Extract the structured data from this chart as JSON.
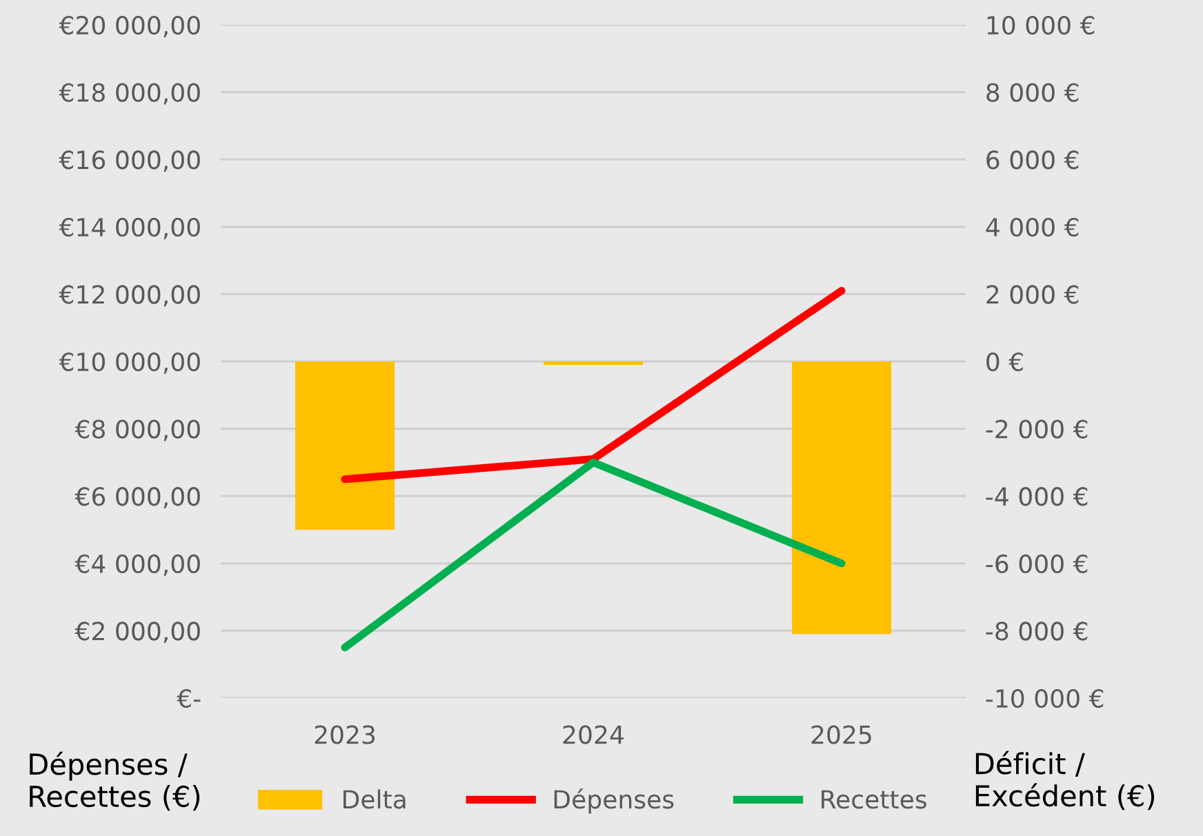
{
  "chart_data": {
    "type": "line",
    "categories": [
      "2023",
      "2024",
      "2025"
    ],
    "series": [
      {
        "name": "Delta",
        "type": "bar",
        "axis": "y2",
        "color": "#ffc000",
        "values": [
          -5000,
          -100,
          -8100
        ]
      },
      {
        "name": "Dépenses",
        "color": "#ff0000",
        "values": [
          6500,
          7100,
          12100
        ]
      },
      {
        "name": "Recettes",
        "color": "#00b050",
        "values": [
          1500,
          7000,
          4000
        ]
      }
    ],
    "ylabel": "Dépenses /\nRecettes (€)",
    "y2label": "Déficit /\nExcédent (€)",
    "ylim": [
      0,
      20000
    ],
    "yticks": [
      {
        "value": 0,
        "label": "€-"
      },
      {
        "value": 2000,
        "label": "€2 000,00"
      },
      {
        "value": 4000,
        "label": "€4 000,00"
      },
      {
        "value": 6000,
        "label": "€6 000,00"
      },
      {
        "value": 8000,
        "label": "€8 000,00"
      },
      {
        "value": 10000,
        "label": "€10 000,00"
      },
      {
        "value": 12000,
        "label": "€12 000,00"
      },
      {
        "value": 14000,
        "label": "€14 000,00"
      },
      {
        "value": 16000,
        "label": "€16 000,00"
      },
      {
        "value": 18000,
        "label": "€18 000,00"
      },
      {
        "value": 20000,
        "label": "€20 000,00"
      }
    ],
    "y2lim": [
      -10000,
      10000
    ],
    "y2ticks": [
      {
        "value": -10000,
        "label": "-10 000 €"
      },
      {
        "value": -8000,
        "label": "-8 000 €"
      },
      {
        "value": -6000,
        "label": "-6 000 €"
      },
      {
        "value": -4000,
        "label": "-4 000 €"
      },
      {
        "value": -2000,
        "label": "-2 000 €"
      },
      {
        "value": 0,
        "label": "0 €"
      },
      {
        "value": 2000,
        "label": "2 000 €"
      },
      {
        "value": 4000,
        "label": "4 000 €"
      },
      {
        "value": 6000,
        "label": "6 000 €"
      },
      {
        "value": 8000,
        "label": "8 000 €"
      },
      {
        "value": 10000,
        "label": "10 000 €"
      }
    ],
    "grid": "y",
    "legend": "bottom",
    "marker": "none",
    "line_style": "solid"
  }
}
